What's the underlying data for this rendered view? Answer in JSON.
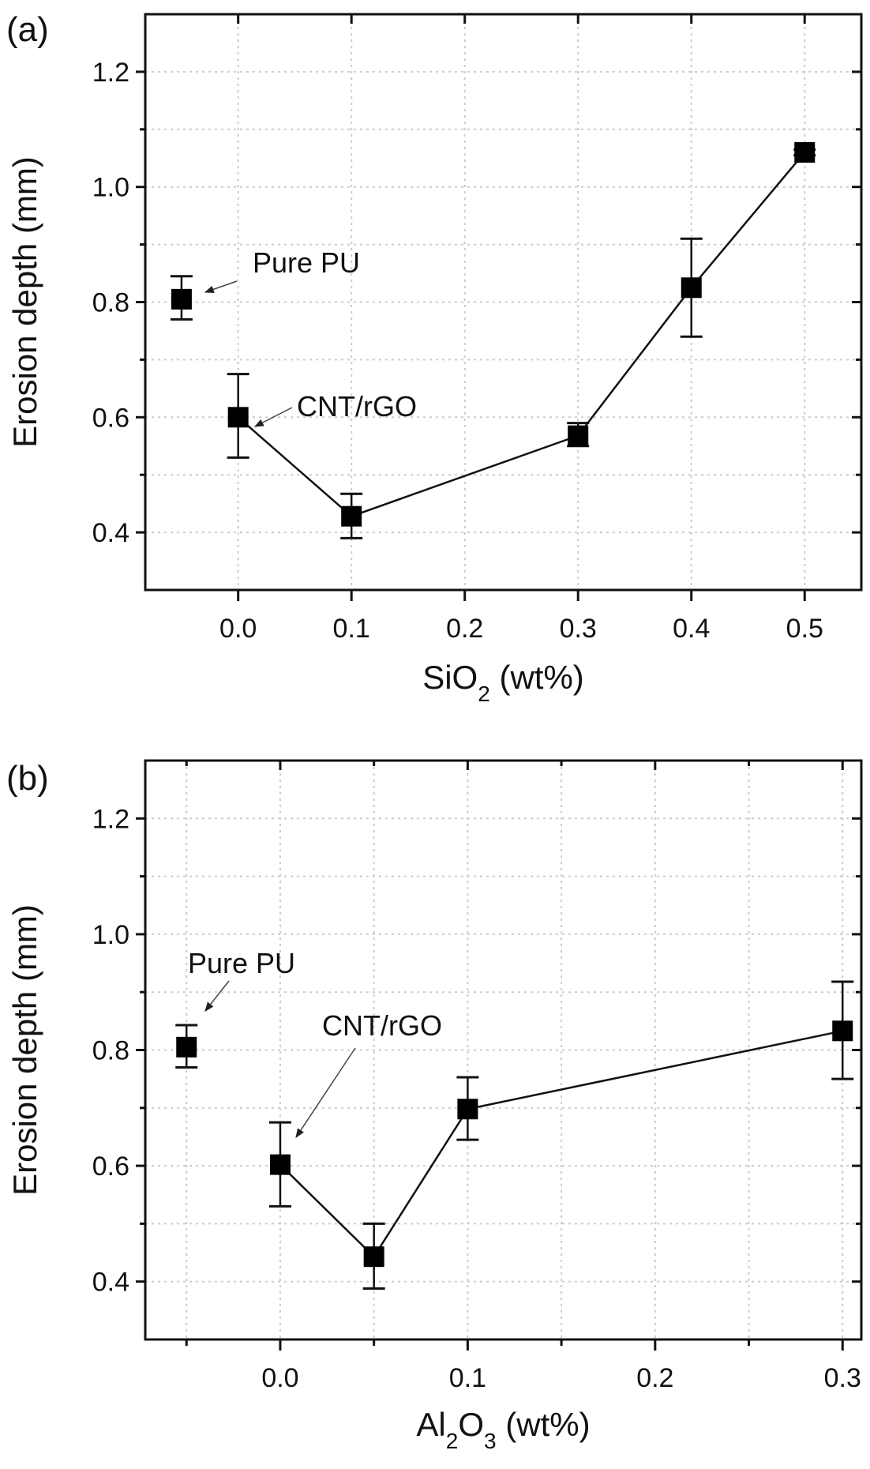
{
  "figure": {
    "background": "#ffffff",
    "marker_color": "#000000",
    "grid_color": "#cccccc"
  },
  "chart_data": [
    {
      "type": "scatter",
      "panel": "(a)",
      "title": "",
      "xlabel_main": "SiO",
      "xlabel_sub": "2",
      "xlabel_tail": " (wt%)",
      "xlabel": "SiO2 (wt%)",
      "ylabel": "Erosion depth (mm)",
      "xlim": [
        -0.082,
        0.55
      ],
      "ylim": [
        0.3,
        1.3
      ],
      "xticks": [
        0.0,
        0.1,
        0.2,
        0.3,
        0.4,
        0.5
      ],
      "xtick_labels": [
        "0.0",
        "0.1",
        "0.2",
        "0.3",
        "0.4",
        "0.5"
      ],
      "yticks": [
        0.4,
        0.6,
        0.8,
        1.0,
        1.2
      ],
      "ytick_labels": [
        "0.4",
        "0.6",
        "0.8",
        "1.0",
        "1.2"
      ],
      "minor_yticks": [
        0.5,
        0.7,
        0.9,
        1.1
      ],
      "grid": true,
      "reference_point": {
        "name": "Pure PU",
        "x": -0.05,
        "y": 0.805,
        "err_low": 0.77,
        "err_high": 0.845
      },
      "series": [
        {
          "name": "CNT/rGO + SiO2",
          "x": [
            0.0,
            0.1,
            0.3,
            0.4,
            0.5
          ],
          "y": [
            0.6,
            0.428,
            0.568,
            0.825,
            1.06
          ],
          "err_low": [
            0.53,
            0.39,
            0.55,
            0.74,
            1.055
          ],
          "err_high": [
            0.675,
            0.467,
            0.59,
            0.91,
            1.065
          ]
        }
      ],
      "annotations": [
        {
          "text": "Pure PU",
          "target": "reference_point"
        },
        {
          "text": "CNT/rGO",
          "target": "x=0.0"
        }
      ]
    },
    {
      "type": "scatter",
      "panel": "(b)",
      "title": "",
      "xlabel_main": "Al",
      "xlabel_sub": "2",
      "xlabel_mid": "O",
      "xlabel_sub2": "3",
      "xlabel_tail": " (wt%)",
      "xlabel": "Al2O3 (wt%)",
      "ylabel": "Erosion depth (mm)",
      "xlim": [
        -0.072,
        0.31
      ],
      "ylim": [
        0.3,
        1.3
      ],
      "xticks": [
        0.0,
        0.1,
        0.2,
        0.3
      ],
      "xtick_labels": [
        "0.0",
        "0.1",
        "0.2",
        "0.3"
      ],
      "minor_xticks": [
        -0.05,
        0.05,
        0.15,
        0.25
      ],
      "yticks": [
        0.4,
        0.6,
        0.8,
        1.0,
        1.2
      ],
      "ytick_labels": [
        "0.4",
        "0.6",
        "0.8",
        "1.0",
        "1.2"
      ],
      "minor_yticks": [
        0.5,
        0.7,
        0.9,
        1.1
      ],
      "grid": true,
      "reference_point": {
        "name": "Pure PU",
        "x": -0.05,
        "y": 0.805,
        "err_low": 0.77,
        "err_high": 0.843
      },
      "series": [
        {
          "name": "CNT/rGO + Al2O3",
          "x": [
            0.0,
            0.05,
            0.1,
            0.3
          ],
          "y": [
            0.602,
            0.443,
            0.698,
            0.833
          ],
          "err_low": [
            0.53,
            0.388,
            0.645,
            0.75
          ],
          "err_high": [
            0.675,
            0.5,
            0.753,
            0.918
          ]
        }
      ],
      "annotations": [
        {
          "text": "Pure PU",
          "target": "reference_point"
        },
        {
          "text": "CNT/rGO",
          "target": "x=0.0"
        }
      ]
    }
  ]
}
